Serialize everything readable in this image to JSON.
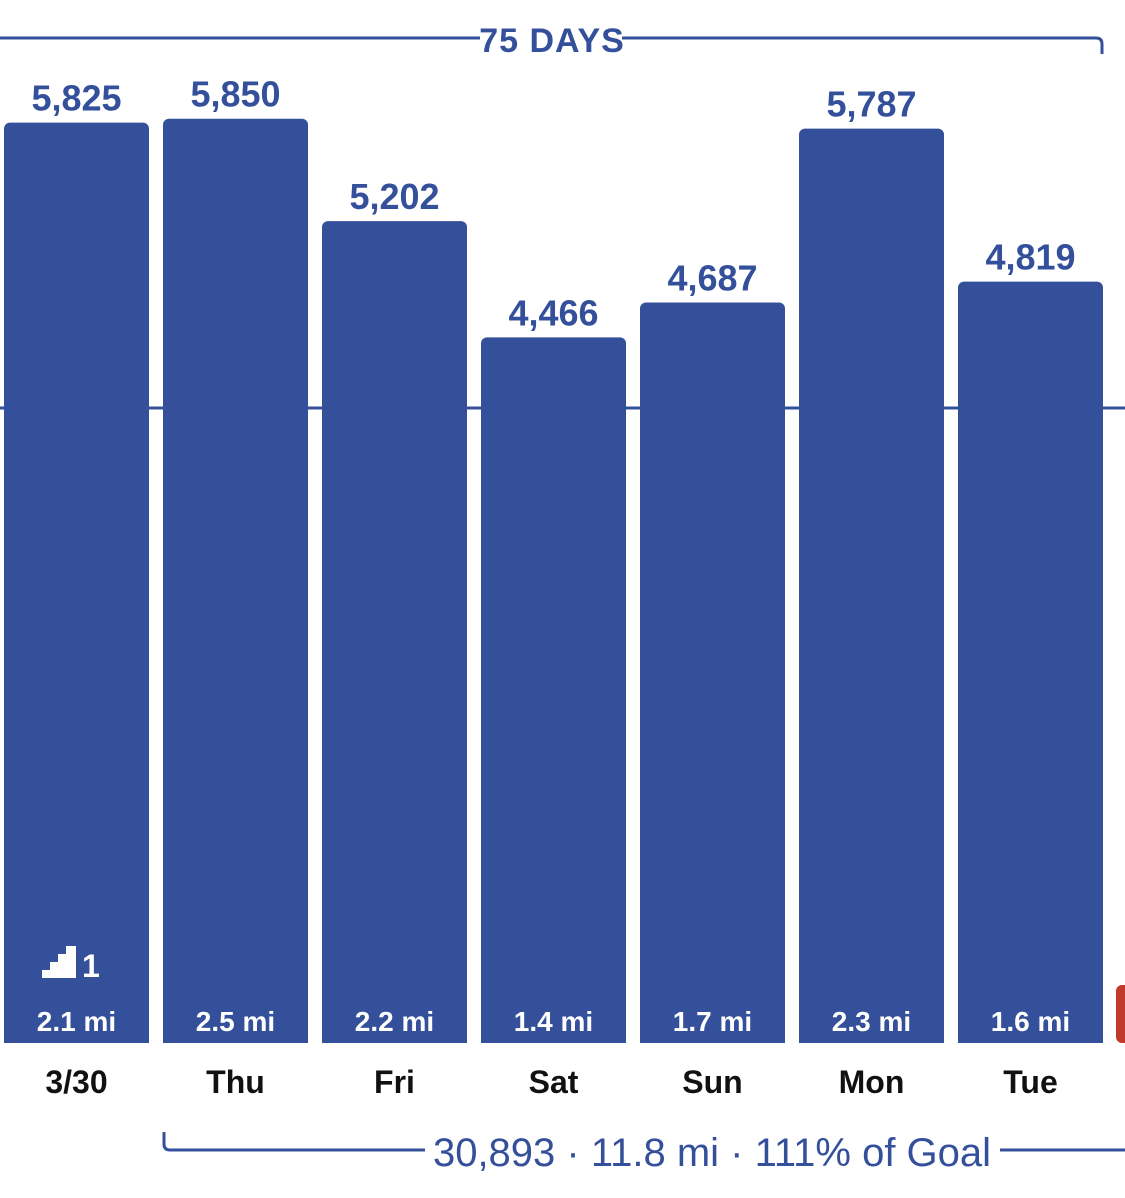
{
  "streak": {
    "label": "75 DAYS"
  },
  "summary": {
    "text": "30,893 · 11.8 mi · 111% of Goal"
  },
  "colors": {
    "bar": "#34509b",
    "line": "#34509b",
    "partial_bar": "#c0392b"
  },
  "floors_badge": {
    "icon": "stairs-icon",
    "value": "1"
  },
  "chart_data": {
    "type": "bar",
    "categories": [
      "3/30",
      "Thu",
      "Fri",
      "Sat",
      "Sun",
      "Mon",
      "Tue"
    ],
    "values": [
      5825,
      5850,
      5202,
      4466,
      4687,
      5787,
      4819
    ],
    "value_labels": [
      "5,825",
      "5,850",
      "5,202",
      "4,466",
      "4,687",
      "5,787",
      "4,819"
    ],
    "miles": [
      "2.1 mi",
      "2.5 mi",
      "2.2 mi",
      "1.4 mi",
      "1.7 mi",
      "2.3 mi",
      "1.6 mi"
    ],
    "goal": 4000,
    "ylim": [
      0,
      6500
    ]
  }
}
